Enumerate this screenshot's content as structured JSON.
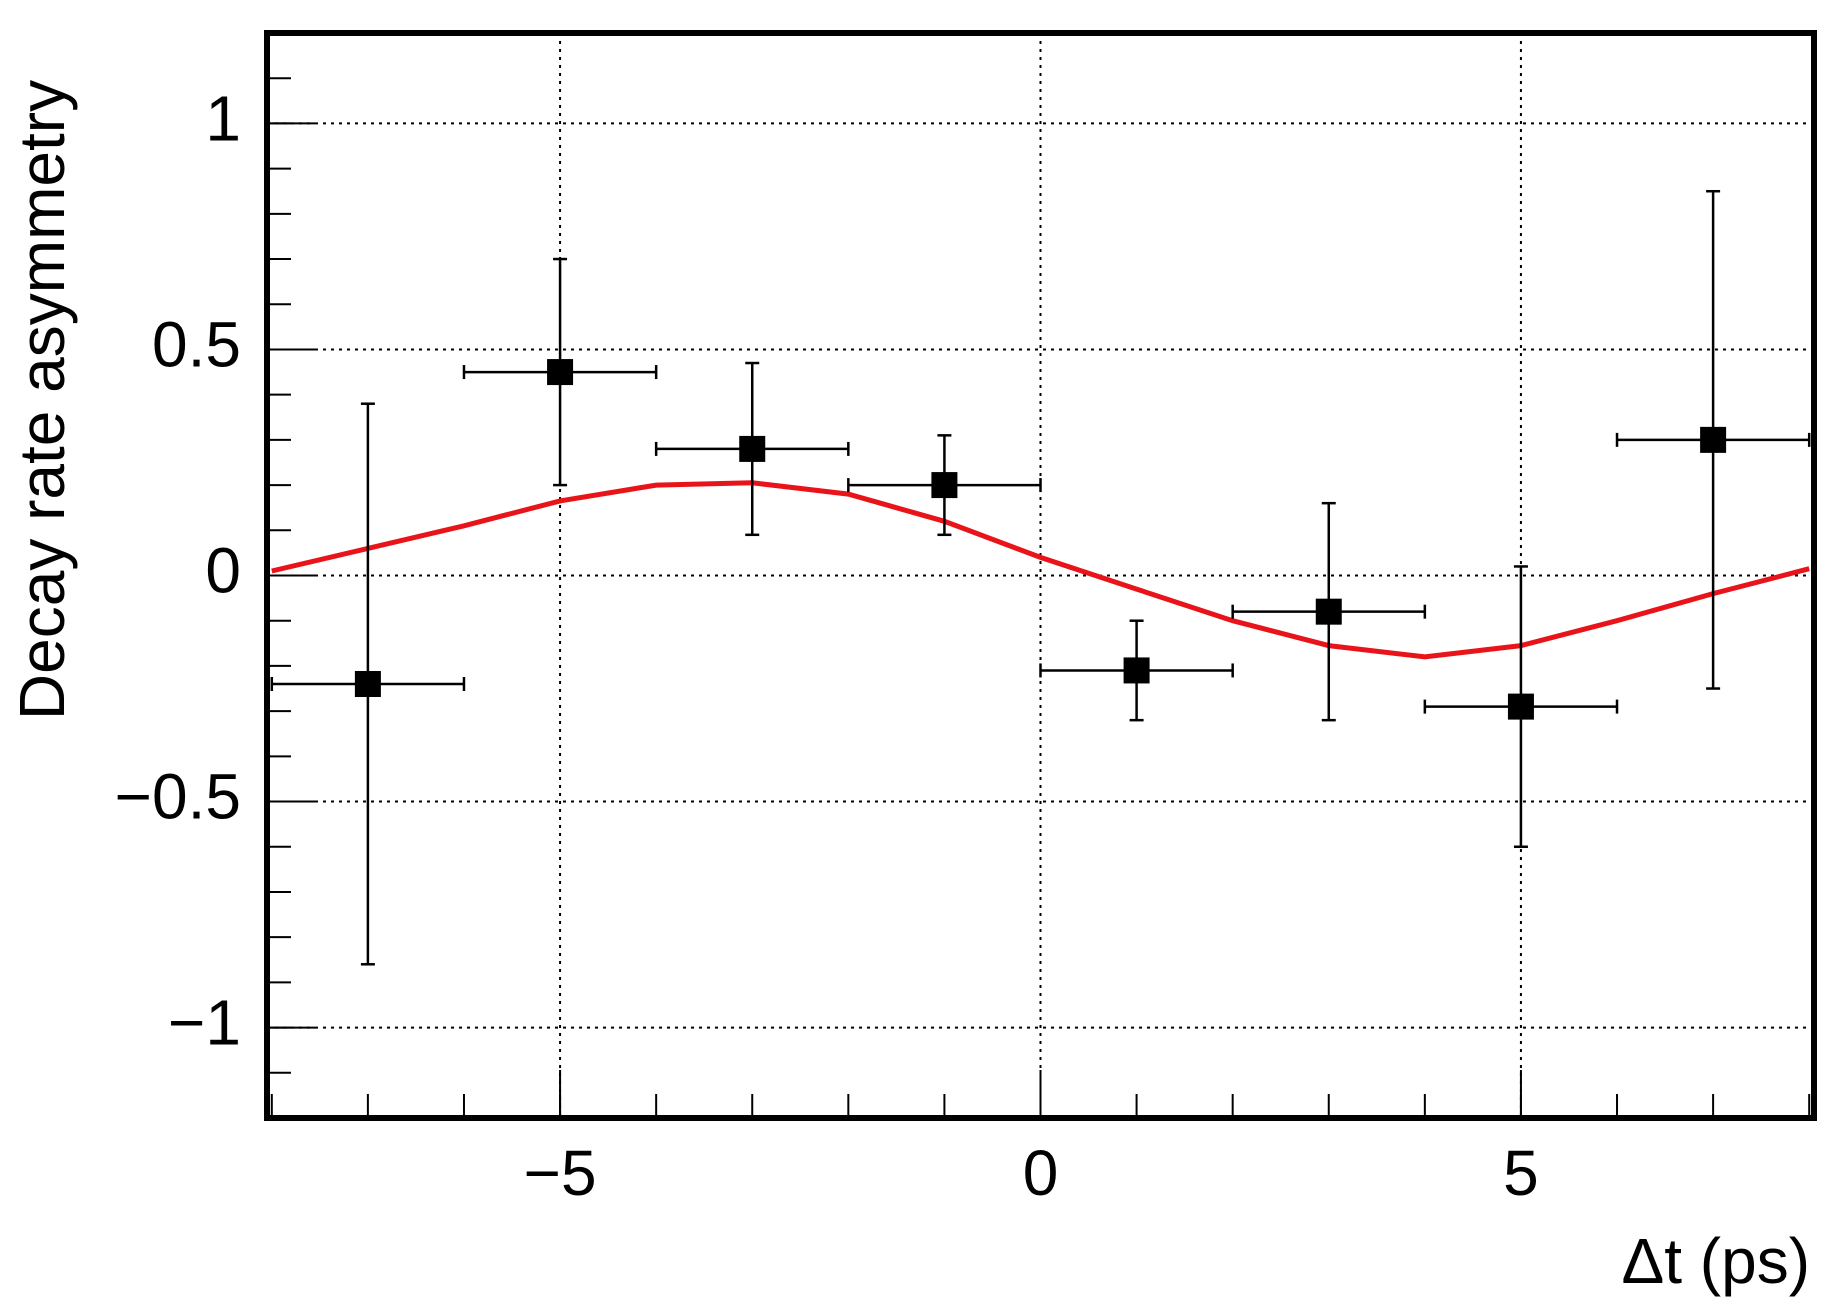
{
  "chart_data": {
    "type": "errorbar",
    "xlabel": "Δt (ps)",
    "ylabel": "Decay rate asymmetry",
    "xlim": [
      -8.05,
      8.05
    ],
    "ylim": [
      -1.2,
      1.2
    ],
    "xticks": [
      {
        "value": -5,
        "label": "−5"
      },
      0,
      5
    ],
    "yticks": [
      {
        "value": -1,
        "label": "−1"
      },
      {
        "value": -0.5,
        "label": "−0.5"
      },
      0,
      0.5,
      1
    ],
    "grid": true,
    "series": [
      {
        "color": "#000000",
        "x": [
          -7,
          -5,
          -3,
          -1,
          1,
          3,
          5,
          7
        ],
        "xerr": [
          1,
          1,
          1,
          1,
          1,
          1,
          1,
          1
        ],
        "values": [
          -0.24,
          0.45,
          0.28,
          0.2,
          -0.21,
          -0.08,
          -0.29,
          0.3
        ],
        "yerr": [
          0.62,
          0.25,
          0.19,
          0.11,
          0.11,
          0.24,
          0.31,
          0.55
        ]
      }
    ],
    "fit": {
      "color": "#e8141a",
      "x": [
        -8,
        -7,
        -6,
        -5,
        -4,
        -3,
        -2,
        -1,
        0,
        1,
        2,
        3,
        4,
        5,
        6,
        7,
        8
      ],
      "values": [
        0.01,
        0.06,
        0.11,
        0.165,
        0.2,
        0.205,
        0.18,
        0.12,
        0.04,
        -0.03,
        -0.1,
        -0.155,
        -0.18,
        -0.155,
        -0.1,
        -0.04,
        0.015
      ]
    }
  }
}
